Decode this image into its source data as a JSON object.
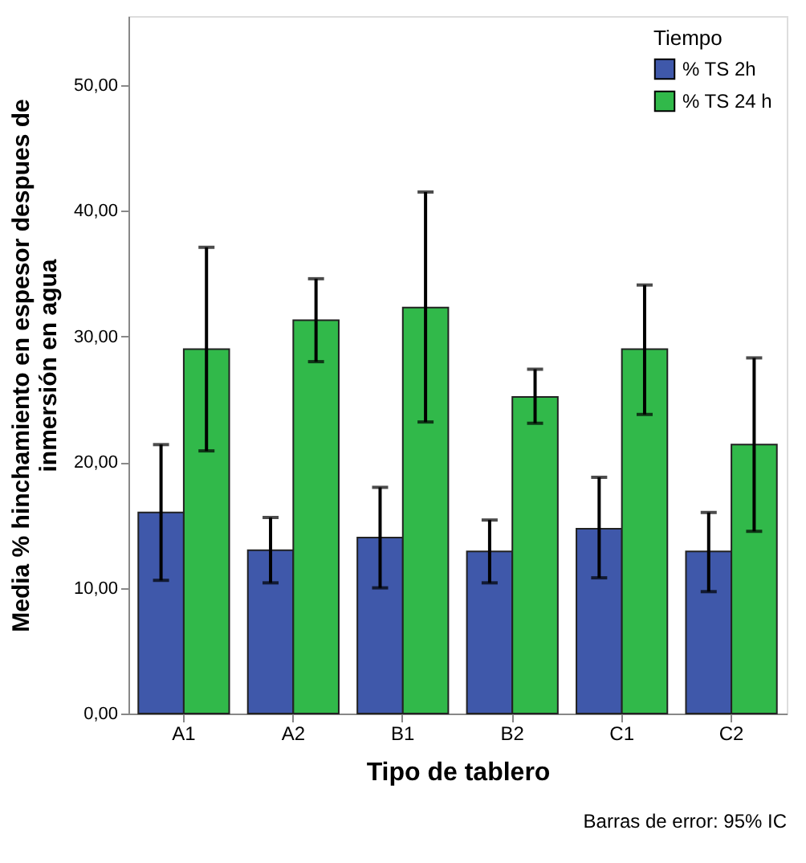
{
  "chart_data": {
    "type": "bar",
    "xlabel": "Tipo de tablero",
    "ylabel": "Media % hinchamiento en espesor despues de\ninmersión en agua",
    "legend_title": "Tiempo",
    "categories": [
      "A1",
      "A2",
      "B1",
      "B2",
      "C1",
      "C2"
    ],
    "series": [
      {
        "name": "% TS 2h",
        "color": "#3f58aa",
        "values": [
          16.0,
          13.0,
          14.0,
          12.9,
          14.7,
          12.9
        ],
        "errors": [
          [
            10.6,
            21.4
          ],
          [
            10.4,
            15.6
          ],
          [
            10.0,
            18.0
          ],
          [
            10.4,
            15.4
          ],
          [
            10.8,
            18.8
          ],
          [
            9.7,
            16.0
          ]
        ]
      },
      {
        "name": "% TS 24 h",
        "color": "#31b94a",
        "values": [
          29.0,
          31.3,
          32.3,
          25.2,
          29.0,
          21.4
        ],
        "errors": [
          [
            20.9,
            37.1
          ],
          [
            28.0,
            34.6
          ],
          [
            23.2,
            41.5
          ],
          [
            23.1,
            27.4
          ],
          [
            23.8,
            34.1
          ],
          [
            14.5,
            28.3
          ]
        ]
      }
    ],
    "ylim": [
      0,
      55.5
    ],
    "yticks": [
      {
        "value": 0,
        "label": "0,00"
      },
      {
        "value": 10,
        "label": "10,00"
      },
      {
        "value": 20,
        "label": "20,00"
      },
      {
        "value": 30,
        "label": "30,00"
      },
      {
        "value": 40,
        "label": "40,00"
      },
      {
        "value": 50,
        "label": "50,00"
      }
    ],
    "grid": false,
    "legend": "top right",
    "annotations": [
      "Barras de error: 95% IC"
    ]
  }
}
